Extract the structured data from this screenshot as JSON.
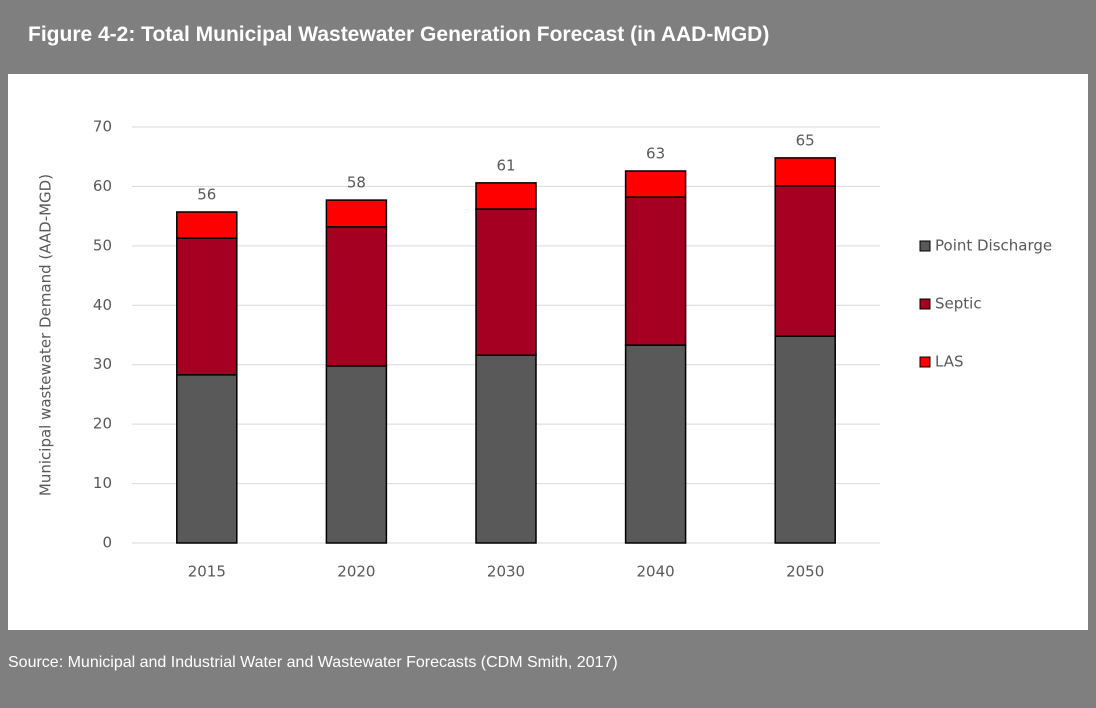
{
  "chart_data": {
    "type": "stacked_bar",
    "title": "Figure 4-2: Total Municipal  Wastewater Generation Forecast (in AAD-MGD)",
    "y_label": "Municipal wastewater Demand (AAD-MGD)",
    "categories": [
      "2015",
      "2020",
      "2030",
      "2040",
      "2050"
    ],
    "series": [
      {
        "name": "Point Discharge",
        "color": "#595959",
        "values": [
          28.3,
          29.8,
          31.6,
          33.3,
          34.8
        ]
      },
      {
        "name": "Septic",
        "color": "#a50021",
        "values": [
          23.0,
          23.4,
          24.6,
          24.9,
          25.3
        ]
      },
      {
        "name": "LAS",
        "color": "#ff0000",
        "values": [
          4.4,
          4.5,
          4.4,
          4.4,
          4.7
        ]
      }
    ],
    "total_labels": [
      56,
      58,
      61,
      63,
      65
    ],
    "ylim": [
      0,
      70
    ],
    "yticks": [
      0,
      10,
      20,
      30,
      40,
      50,
      60,
      70
    ],
    "grid": true,
    "legend": "right"
  },
  "source": "Source: Municipal and Industrial Water and Wastewater Forecasts (CDM Smith, 2017)"
}
